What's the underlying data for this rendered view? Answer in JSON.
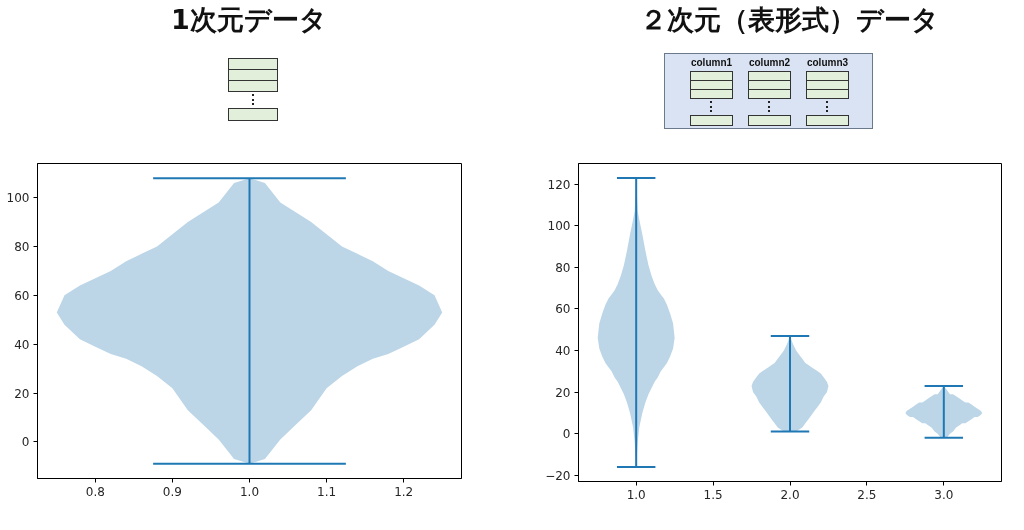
{
  "chart_data": [
    {
      "type": "area",
      "title": "1次元データ",
      "xlim": [
        0.725,
        1.275
      ],
      "xticks": [
        0.8,
        0.9,
        {
          "value": 1,
          "label": "1.0"
        },
        1.1,
        1.2
      ],
      "ylim": [
        -15,
        114
      ],
      "yticks": [
        0,
        20,
        40,
        60,
        80,
        100
      ],
      "series": [
        {
          "color": "#bcd6e8",
          "x": [
            0.75,
            0.76,
            0.78,
            0.8,
            0.82,
            0.84,
            0.86,
            0.88,
            0.9,
            0.92,
            0.94,
            0.96,
            0.98,
            1,
            1.02,
            1.04,
            1.06,
            1.08,
            1.1,
            1.12,
            1.14,
            1.16,
            1.18,
            1.2,
            1.22,
            1.24,
            1.25,
            1.24,
            1.22,
            1.2,
            1.18,
            1.16,
            1.14,
            1.12,
            1.1,
            1.08,
            1.06,
            1.04,
            1.02,
            1,
            0.98,
            0.96,
            0.94,
            0.92,
            0.9,
            0.88,
            0.86,
            0.84,
            0.82,
            0.8,
            0.78,
            0.76
          ],
          "values": [
            53,
            60,
            64,
            67,
            70,
            74,
            77,
            80,
            85,
            90,
            94,
            98,
            106,
            108,
            106,
            98,
            94,
            90,
            85,
            80,
            77,
            74,
            70,
            67,
            64,
            60,
            53,
            48,
            42,
            39,
            36,
            34,
            31,
            27,
            22,
            13,
            7,
            1,
            -7,
            -9,
            -7,
            1,
            7,
            13,
            22,
            27,
            31,
            34,
            36,
            39,
            42,
            48
          ]
        },
        {
          "type": "line",
          "color": "#1f77b4",
          "x": [
            1,
            1
          ],
          "values": [
            -9,
            108
          ]
        },
        {
          "type": "line",
          "color": "#1f77b4",
          "x": [
            0.875,
            1.125
          ],
          "values": [
            108,
            108
          ]
        },
        {
          "type": "line",
          "color": "#1f77b4",
          "x": [
            0.875,
            1.125
          ],
          "values": [
            -9,
            -9
          ]
        }
      ]
    },
    {
      "type": "area",
      "title": "２次元（表形式）データ",
      "annotations": [
        "column1",
        "column2",
        "column3"
      ],
      "xlim": [
        0.625,
        3.375
      ],
      "xticks": [
        {
          "value": 1,
          "label": "1.0"
        },
        1.5,
        {
          "value": 2,
          "label": "2.0"
        },
        2.5,
        {
          "value": 3,
          "label": "3.0"
        }
      ],
      "ylim": [
        -23,
        130
      ],
      "yticks": [
        {
          "value": -20,
          "label": "−20"
        },
        0,
        20,
        40,
        60,
        80,
        100,
        120
      ],
      "series": [
        {
          "color": "#bcd6e8",
          "x": [
            0.75,
            0.76,
            0.78,
            0.8,
            0.82,
            0.84,
            0.86,
            0.88,
            0.9,
            0.92,
            0.94,
            0.96,
            0.98,
            0.99,
            1,
            1.01,
            1.02,
            1.04,
            1.06,
            1.08,
            1.1,
            1.12,
            1.14,
            1.16,
            1.18,
            1.2,
            1.22,
            1.24,
            1.25,
            1.24,
            1.22,
            1.2,
            1.18,
            1.16,
            1.14,
            1.12,
            1.1,
            1.08,
            1.06,
            1.04,
            1.02,
            1.01,
            1,
            0.99,
            0.98,
            0.96,
            0.94,
            0.92,
            0.9,
            0.88,
            0.86,
            0.84,
            0.82,
            0.8,
            0.78,
            0.76
          ],
          "values": [
            46,
            53,
            58,
            62,
            65,
            67,
            69,
            72,
            76,
            81,
            88,
            96,
            103,
            107,
            123,
            107,
            103,
            96,
            88,
            81,
            76,
            72,
            69,
            67,
            65,
            62,
            58,
            53,
            46,
            41,
            37,
            34,
            32,
            30,
            27,
            25,
            22,
            19,
            15,
            10,
            3,
            -4,
            -16,
            -4,
            3,
            10,
            15,
            19,
            22,
            25,
            27,
            30,
            32,
            34,
            37,
            41
          ]
        },
        {
          "color": "#bcd6e8",
          "x": [
            1.75,
            1.76,
            1.78,
            1.8,
            1.82,
            1.84,
            1.86,
            1.88,
            1.9,
            1.92,
            1.94,
            1.96,
            1.98,
            2,
            2.02,
            2.04,
            2.06,
            2.08,
            2.1,
            2.12,
            2.14,
            2.16,
            2.18,
            2.2,
            2.22,
            2.24,
            2.25,
            2.24,
            2.22,
            2.2,
            2.18,
            2.16,
            2.14,
            2.12,
            2.1,
            2.08,
            2.06,
            2.04,
            2.02,
            2,
            1.98,
            1.96,
            1.94,
            1.92,
            1.9,
            1.88,
            1.86,
            1.84,
            1.82,
            1.8,
            1.78,
            1.76
          ],
          "values": [
            23,
            25,
            27,
            29,
            30,
            31,
            32,
            33,
            34,
            36,
            38,
            40,
            43,
            47,
            43,
            40,
            38,
            36,
            34,
            33,
            32,
            31,
            30,
            29,
            27,
            25,
            23,
            20,
            18,
            15,
            13,
            11,
            9,
            7,
            5,
            3,
            2,
            1,
            1,
            1,
            1,
            1,
            2,
            3,
            5,
            7,
            9,
            11,
            13,
            15,
            18,
            20
          ]
        },
        {
          "color": "#bcd6e8",
          "x": [
            2.75,
            2.76,
            2.78,
            2.8,
            2.82,
            2.84,
            2.86,
            2.88,
            2.9,
            2.92,
            2.94,
            2.96,
            2.98,
            3,
            3.02,
            3.04,
            3.06,
            3.08,
            3.1,
            3.12,
            3.14,
            3.16,
            3.18,
            3.2,
            3.22,
            3.24,
            3.25,
            3.24,
            3.22,
            3.2,
            3.18,
            3.16,
            3.14,
            3.12,
            3.1,
            3.08,
            3.06,
            3.04,
            3.02,
            3,
            2.98,
            2.96,
            2.94,
            2.92,
            2.9,
            2.88,
            2.86,
            2.84,
            2.82,
            2.8,
            2.78,
            2.76
          ],
          "values": [
            10,
            11,
            12,
            13,
            14,
            15,
            15,
            16,
            17,
            18,
            19,
            19,
            21,
            23,
            21,
            19,
            19,
            18,
            17,
            16,
            15,
            15,
            14,
            13,
            12,
            11,
            10,
            9,
            8,
            8,
            7,
            6,
            5,
            5,
            4,
            3,
            1,
            0,
            -2,
            -2,
            -2,
            0,
            1,
            3,
            4,
            5,
            5,
            6,
            7,
            8,
            8,
            9
          ]
        },
        {
          "type": "line",
          "color": "#1f77b4",
          "x": [
            1,
            1
          ],
          "values": [
            -16,
            123
          ]
        },
        {
          "type": "line",
          "color": "#1f77b4",
          "x": [
            0.875,
            1.125
          ],
          "values": [
            123,
            123
          ]
        },
        {
          "type": "line",
          "color": "#1f77b4",
          "x": [
            0.875,
            1.125
          ],
          "values": [
            -16,
            -16
          ]
        },
        {
          "type": "line",
          "color": "#1f77b4",
          "x": [
            2,
            2
          ],
          "values": [
            1,
            47
          ]
        },
        {
          "type": "line",
          "color": "#1f77b4",
          "x": [
            1.875,
            2.125
          ],
          "values": [
            47,
            47
          ]
        },
        {
          "type": "line",
          "color": "#1f77b4",
          "x": [
            1.875,
            2.125
          ],
          "values": [
            1,
            1
          ]
        },
        {
          "type": "line",
          "color": "#1f77b4",
          "x": [
            3,
            3
          ],
          "values": [
            -2,
            23
          ]
        },
        {
          "type": "line",
          "color": "#1f77b4",
          "x": [
            2.875,
            3.125
          ],
          "values": [
            23,
            23
          ]
        },
        {
          "type": "line",
          "color": "#1f77b4",
          "x": [
            2.875,
            3.125
          ],
          "values": [
            -2,
            -2
          ]
        }
      ]
    }
  ]
}
